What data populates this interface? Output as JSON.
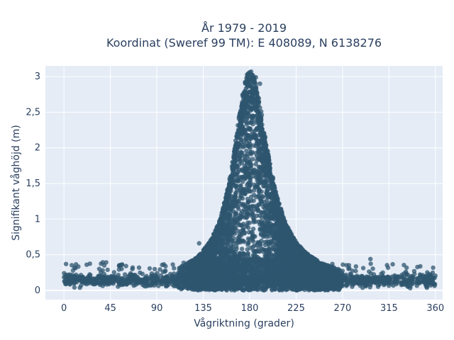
{
  "chart_data": {
    "type": "scatter",
    "title_line1": "År 1979 - 2019",
    "title_line2": "Koordinat (Sweref 99 TM): E 408089, N 6138276",
    "xlabel": "Vågriktning (grader)",
    "ylabel": "Signifikant våghöjd (m)",
    "xlim": [
      -18,
      367
    ],
    "ylim": [
      -0.13,
      3.15
    ],
    "xticks": [
      0,
      45,
      90,
      135,
      180,
      225,
      270,
      315,
      360
    ],
    "xtick_labels": [
      "0",
      "45",
      "90",
      "135",
      "180",
      "225",
      "270",
      "315",
      "360"
    ],
    "yticks": [
      0,
      0.5,
      1,
      1.5,
      2,
      2.5,
      3
    ],
    "ytick_labels": [
      "0",
      "0,5",
      "1",
      "1,5",
      "2",
      "2,5",
      "3"
    ],
    "grid": true,
    "plot_background": "#e5ecf6",
    "marker_color": "#2f566f",
    "distribution": {
      "baseline_height": 0.15,
      "peak_direction": 180,
      "peak_height": 3.02,
      "x_range": [
        0,
        360
      ]
    },
    "notable_points": [
      {
        "x": 183,
        "y": 3.02
      },
      {
        "x": 186,
        "y": 2.99
      },
      {
        "x": 177,
        "y": 2.93
      },
      {
        "x": 190,
        "y": 2.9
      },
      {
        "x": 2,
        "y": 0.37
      },
      {
        "x": 297,
        "y": 0.44
      },
      {
        "x": 131,
        "y": 0.66
      }
    ]
  }
}
